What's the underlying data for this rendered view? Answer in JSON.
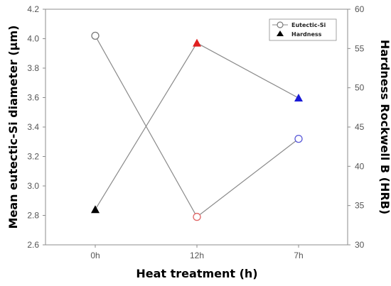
{
  "chart_data": {
    "type": "line",
    "categories": [
      "0h",
      "12h",
      "7h"
    ],
    "xlabel": "Heat treatment (h)",
    "ylabel_left": "Mean eutectic-Si diameter (μm)",
    "ylabel_right": "Hardness Rockwell B (HRB)",
    "ylim_left": [
      2.6,
      4.2
    ],
    "yticks_left": [
      "2.6",
      "2.8",
      "3.0",
      "3.2",
      "3.4",
      "3.6",
      "3.8",
      "4.0",
      "4.2"
    ],
    "ylim_right": [
      30,
      60
    ],
    "yticks_right": [
      "30",
      "35",
      "40",
      "45",
      "50",
      "55",
      "60"
    ],
    "grid": false,
    "legend_position": "top-right",
    "series": [
      {
        "name": "Eutectic-Si",
        "axis": "left",
        "marker": "open-circle",
        "values": [
          4.02,
          2.79,
          3.32
        ],
        "point_colors": [
          "#7a7a7a",
          "#e06666",
          "#5a5ad8"
        ]
      },
      {
        "name": "Hardness",
        "axis": "right",
        "marker": "filled-triangle",
        "values": [
          34.5,
          55.7,
          48.7
        ],
        "point_colors": [
          "#000000",
          "#e02020",
          "#1a1ad6"
        ]
      }
    ],
    "line_color": "#8a8a8a"
  }
}
